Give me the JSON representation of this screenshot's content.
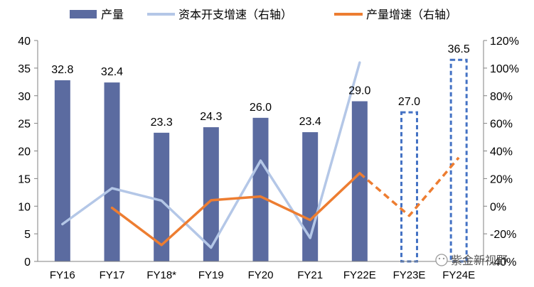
{
  "chart_data": {
    "type": "bar",
    "categories": [
      "FY16",
      "FY17",
      "FY18*",
      "FY19",
      "FY20",
      "FY21",
      "FY22E",
      "FY23E",
      "FY24E"
    ],
    "series": [
      {
        "name": "产量",
        "type": "bar",
        "axis": "left",
        "values": [
          32.8,
          32.4,
          23.3,
          24.3,
          26.0,
          23.4,
          29.0,
          27.0,
          36.5
        ],
        "labels": [
          "32.8",
          "32.4",
          "23.3",
          "24.3",
          "26.0",
          "23.4",
          "29.0",
          "27.0",
          "36.5"
        ],
        "estimate_from_index": 7,
        "color": "#5B6BA0",
        "estimate_color": "#4472C4"
      },
      {
        "name": "资本开支增速（右轴）",
        "type": "line",
        "axis": "right",
        "values": [
          -13,
          13,
          4,
          -30,
          33,
          -23,
          104,
          null,
          null
        ],
        "color": "#B4C7E7"
      },
      {
        "name": "产量增速（右轴）",
        "type": "line",
        "axis": "right",
        "values": [
          null,
          -1.2,
          -28.1,
          4.3,
          7.0,
          -10.0,
          23.9,
          -6.9,
          35.2
        ],
        "solid_until_index": 6,
        "color": "#ED7D31"
      }
    ],
    "left_axis": {
      "min": 0,
      "max": 40,
      "step": 5,
      "ticks": [
        "0",
        "5",
        "10",
        "15",
        "20",
        "25",
        "30",
        "35",
        "40"
      ]
    },
    "right_axis": {
      "min": -40,
      "max": 120,
      "step": 20,
      "ticks": [
        "-40%",
        "-20%",
        "0%",
        "20%",
        "40%",
        "60%",
        "80%",
        "100%",
        "120%"
      ]
    },
    "legend_position": "top",
    "grid": false
  },
  "watermark": {
    "text": "紫金新视野",
    "icon": "wechat-icon"
  }
}
